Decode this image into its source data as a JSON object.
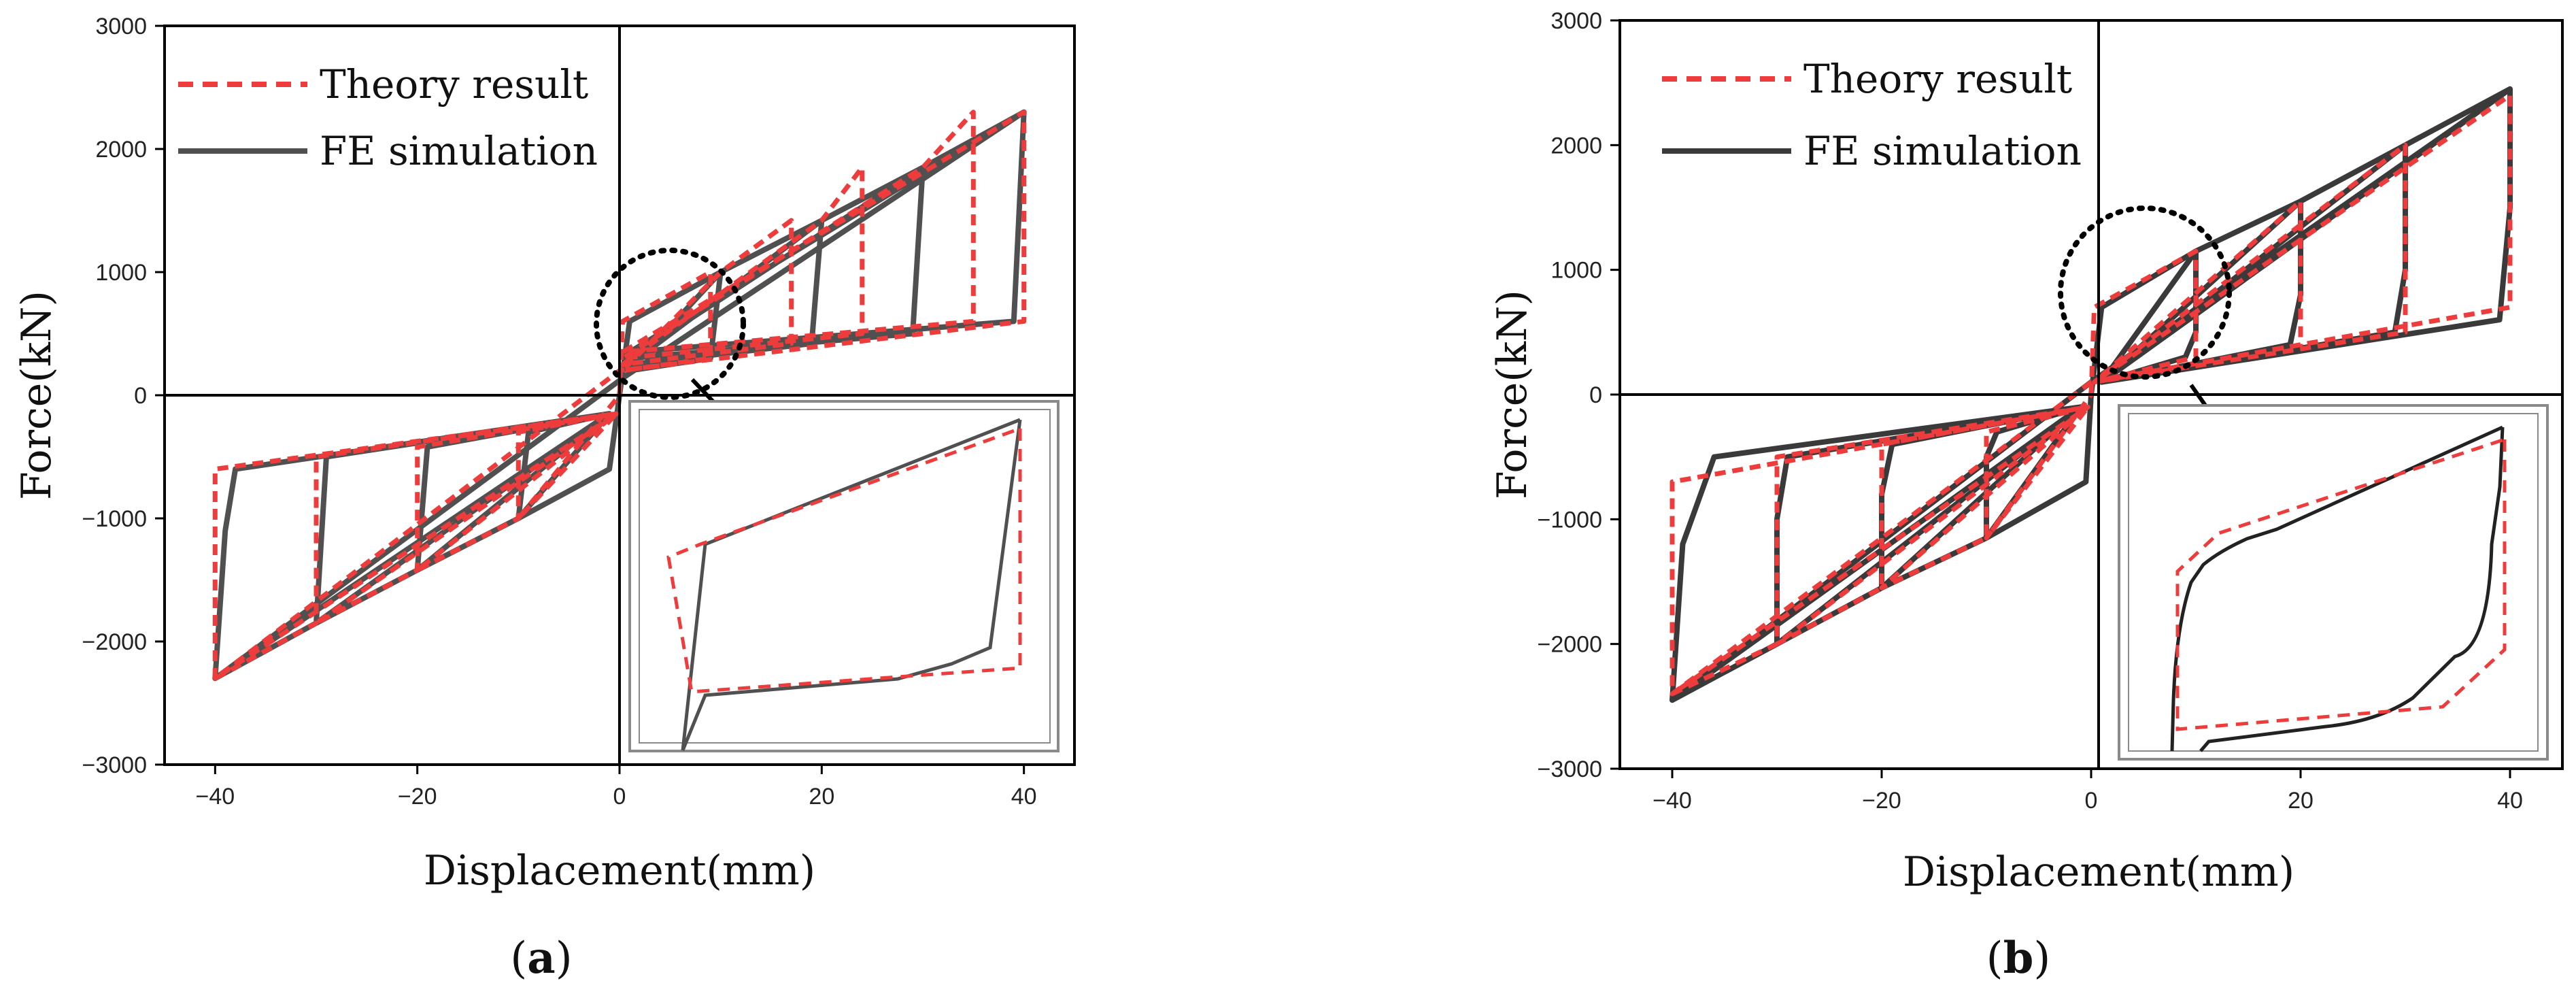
{
  "colors": {
    "theory": "#ee3b3b",
    "fe_a": "#505050",
    "fe_b": "#3a3a3a",
    "axes": "#000000",
    "inset_frame": "#8a8a8a",
    "arrow": "#000000"
  },
  "chart_data": [
    {
      "type": "line",
      "panel_label": "a",
      "xlabel": "Displacement(mm)",
      "ylabel": "Force(kN)",
      "xlim": [
        -45,
        45
      ],
      "ylim": [
        -3000,
        3000
      ],
      "xticks": [
        -40,
        -20,
        0,
        20,
        40
      ],
      "yticks": [
        -3000,
        -2000,
        -1000,
        0,
        1000,
        2000,
        3000
      ],
      "xtick_labels": [
        "−40",
        "−20",
        "0",
        "20",
        "40"
      ],
      "ytick_labels": [
        "−3000",
        "−2000",
        "−1000",
        "0",
        "1000",
        "2000",
        "3000"
      ],
      "grid": false,
      "legend_position": "top-left",
      "legend": [
        {
          "name": "Theory result",
          "style": "dashed",
          "color": "#ee3b3b"
        },
        {
          "name": "FE simulation",
          "style": "solid",
          "color": "#505050"
        }
      ],
      "series": [
        {
          "name": "FE simulation",
          "style": "solid",
          "x": [
            0,
            1,
            10,
            9,
            1,
            10,
            20,
            19,
            1,
            20,
            30,
            29,
            1,
            30,
            40,
            39,
            1,
            40,
            40,
            0.5,
            -40,
            -40,
            -39,
            -38,
            -1,
            -40,
            -30,
            -29,
            -1,
            -30,
            -20,
            -19,
            -1,
            -20,
            -10,
            -9,
            -1,
            -10,
            -1,
            0
          ],
          "y": [
            0,
            600,
            1000,
            300,
            200,
            1000,
            1420,
            420,
            250,
            1420,
            1850,
            500,
            300,
            1850,
            2300,
            600,
            350,
            2300,
            2300,
            150,
            -2300,
            -2300,
            -1100,
            -600,
            -150,
            -2300,
            -1850,
            -500,
            -150,
            -1850,
            -1420,
            -420,
            -150,
            -1420,
            -1000,
            -300,
            -150,
            -1000,
            -600,
            0
          ]
        },
        {
          "name": "Theory result",
          "style": "dashed",
          "x": [
            0,
            0.3,
            9,
            9,
            0.3,
            10,
            17,
            17,
            0.3,
            20,
            24,
            24,
            0.3,
            30,
            35,
            35,
            0.3,
            40,
            40,
            0,
            -40,
            -40,
            -0.3,
            -40,
            -30,
            -30,
            -0.3,
            -30,
            -20,
            -20,
            -0.3,
            -20,
            -10,
            -10,
            -0.3,
            -10,
            0
          ],
          "y": [
            0,
            600,
            1000,
            300,
            200,
            1000,
            1420,
            420,
            250,
            1420,
            1850,
            500,
            300,
            1850,
            2300,
            600,
            350,
            2300,
            600,
            200,
            -2300,
            -600,
            -150,
            -2300,
            -1850,
            -500,
            -150,
            -1850,
            -1420,
            -420,
            -150,
            -1420,
            -1000,
            -300,
            -150,
            -1000,
            0
          ]
        }
      ],
      "annotations": [
        {
          "type": "dotted-circle",
          "center": [
            9,
            600
          ],
          "note": "zoomed region"
        },
        {
          "type": "arrow",
          "from": [
            10,
            120
          ],
          "to": [
            18,
            -800
          ]
        },
        {
          "type": "inset",
          "content": "zoom of the hysteresis loop near origin"
        }
      ]
    },
    {
      "type": "line",
      "panel_label": "b",
      "xlabel": "Displacement(mm)",
      "ylabel": "Force(kN)",
      "xlim": [
        -45,
        45
      ],
      "ylim": [
        -3000,
        3000
      ],
      "xticks": [
        -40,
        -20,
        0,
        20,
        40
      ],
      "yticks": [
        -3000,
        -2000,
        -1000,
        0,
        1000,
        2000,
        3000
      ],
      "xtick_labels": [
        "−40",
        "−20",
        "0",
        "20",
        "40"
      ],
      "ytick_labels": [
        "−3000",
        "−2000",
        "−1000",
        "0",
        "1000",
        "2000",
        "3000"
      ],
      "grid": false,
      "legend_position": "top-left",
      "legend": [
        {
          "name": "Theory result",
          "style": "dashed",
          "color": "#ee3b3b"
        },
        {
          "name": "FE simulation",
          "style": "solid",
          "color": "#3a3a3a"
        }
      ],
      "series": [
        {
          "name": "FE simulation",
          "style": "solid",
          "x": [
            0,
            1,
            10,
            10,
            9,
            1,
            10,
            20,
            20,
            19,
            1,
            20,
            30,
            30,
            29,
            1,
            30,
            40,
            40,
            39,
            1,
            40,
            40,
            0,
            -40,
            -40,
            -39,
            -36,
            -1,
            -40,
            -30,
            -30,
            -29,
            -1,
            -30,
            -20,
            -20,
            -19,
            -1,
            -20,
            -10,
            -10,
            -9,
            -1,
            -10,
            -0.5,
            0
          ],
          "y": [
            0,
            700,
            1150,
            500,
            300,
            100,
            1150,
            1550,
            800,
            400,
            100,
            1550,
            2000,
            1000,
            500,
            100,
            2000,
            2450,
            1500,
            600,
            100,
            2450,
            2450,
            100,
            -2450,
            -2450,
            -1200,
            -500,
            -100,
            -2450,
            -2000,
            -1000,
            -500,
            -100,
            -2000,
            -1550,
            -800,
            -400,
            -100,
            -1550,
            -1150,
            -500,
            -300,
            -100,
            -1150,
            -700,
            0
          ]
        },
        {
          "name": "Theory result",
          "style": "dashed",
          "x": [
            0,
            0.3,
            10,
            10,
            0.3,
            20,
            20,
            0.3,
            30,
            30,
            0.3,
            40,
            40,
            0,
            -40,
            -40,
            -0.3,
            -40,
            -30,
            -30,
            -0.3,
            -30,
            -20,
            -20,
            -0.3,
            -20,
            -10,
            -10,
            -0.3,
            -10,
            0
          ],
          "y": [
            0,
            700,
            1150,
            300,
            100,
            1550,
            400,
            100,
            2000,
            500,
            100,
            2400,
            700,
            100,
            -2400,
            -700,
            -100,
            -2400,
            -2000,
            -500,
            -100,
            -2000,
            -1550,
            -400,
            -100,
            -1550,
            -1150,
            -300,
            -100,
            -1150,
            0
          ]
        }
      ],
      "annotations": [
        {
          "type": "dotted-circle",
          "center": [
            6,
            600
          ],
          "note": "zoomed region"
        },
        {
          "type": "arrow",
          "from": [
            7,
            100
          ],
          "to": [
            15,
            -900
          ]
        },
        {
          "type": "inset",
          "content": "zoom of the hysteresis loop near origin"
        }
      ]
    }
  ]
}
